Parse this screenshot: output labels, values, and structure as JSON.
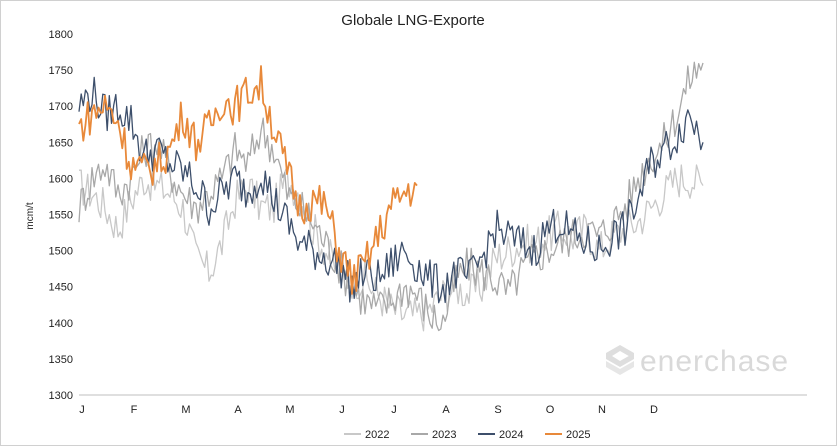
{
  "chart_data": {
    "type": "line",
    "title": "Globale LNG-Exporte",
    "xlabel": "",
    "ylabel": "mcm/t",
    "ylim": [
      1300,
      1800
    ],
    "yticks": [
      1300,
      1350,
      1400,
      1450,
      1500,
      1550,
      1600,
      1650,
      1700,
      1750,
      1800
    ],
    "xlim": [
      0,
      14.0
    ],
    "xticks": [
      "J",
      "F",
      "M",
      "A",
      "M",
      "J",
      "J",
      "A",
      "S",
      "O",
      "N",
      "D"
    ],
    "grid": false,
    "legend_position": "bottom",
    "series": [
      {
        "name": "2022",
        "color": "#c8c8c8",
        "x": [
          0.0,
          0.25,
          0.5,
          0.75,
          1.0,
          1.25,
          1.5,
          1.75,
          2.0,
          2.25,
          2.5,
          2.75,
          3.0,
          3.25,
          3.5,
          3.75,
          4.0,
          4.25,
          4.5,
          4.75,
          5.0,
          5.25,
          5.5,
          5.75,
          6.0,
          6.25,
          6.5,
          6.75,
          7.0,
          7.25,
          7.5,
          7.75,
          8.0,
          8.25,
          8.5,
          8.75,
          9.0,
          9.25,
          9.5,
          9.75,
          10.0,
          10.25,
          10.5,
          10.75,
          11.0,
          11.25,
          11.5,
          11.75,
          12.0
        ],
        "values": [
          1590,
          1580,
          1560,
          1530,
          1570,
          1600,
          1590,
          1580,
          1560,
          1490,
          1470,
          1510,
          1570,
          1590,
          1560,
          1560,
          1600,
          1580,
          1530,
          1500,
          1470,
          1460,
          1460,
          1440,
          1420,
          1410,
          1410,
          1420,
          1440,
          1450,
          1440,
          1450,
          1490,
          1500,
          1510,
          1510,
          1520,
          1530,
          1520,
          1530,
          1500,
          1520,
          1530,
          1540,
          1560,
          1580,
          1600,
          1600,
          1590
        ]
      },
      {
        "name": "2023",
        "color": "#a8a8a8",
        "x": [
          0.0,
          0.25,
          0.5,
          0.75,
          1.0,
          1.25,
          1.5,
          1.75,
          2.0,
          2.25,
          2.5,
          2.75,
          3.0,
          3.25,
          3.5,
          3.75,
          4.0,
          4.25,
          4.5,
          4.75,
          5.0,
          5.25,
          5.5,
          5.75,
          6.0,
          6.25,
          6.5,
          6.75,
          7.0,
          7.25,
          7.5,
          7.75,
          8.0,
          8.25,
          8.5,
          8.75,
          9.0,
          9.25,
          9.5,
          9.75,
          10.0,
          10.25,
          10.5,
          10.75,
          11.0,
          11.25,
          11.5,
          11.75,
          12.0
        ],
        "values": [
          1560,
          1600,
          1620,
          1580,
          1600,
          1640,
          1650,
          1610,
          1580,
          1560,
          1580,
          1600,
          1640,
          1620,
          1670,
          1640,
          1580,
          1560,
          1540,
          1510,
          1480,
          1450,
          1430,
          1420,
          1430,
          1450,
          1440,
          1410,
          1400,
          1460,
          1480,
          1470,
          1460,
          1440,
          1470,
          1490,
          1500,
          1510,
          1520,
          1530,
          1520,
          1540,
          1560,
          1600,
          1630,
          1650,
          1690,
          1740,
          1760
        ]
      },
      {
        "name": "2024",
        "color": "#3d4f6b",
        "x": [
          0.0,
          0.25,
          0.5,
          0.75,
          1.0,
          1.25,
          1.5,
          1.75,
          2.0,
          2.25,
          2.5,
          2.75,
          3.0,
          3.25,
          3.5,
          3.75,
          4.0,
          4.25,
          4.5,
          4.75,
          5.0,
          5.25,
          5.5,
          5.75,
          6.0,
          6.25,
          6.5,
          6.75,
          7.0,
          7.25,
          7.5,
          7.75,
          8.0,
          8.25,
          8.5,
          8.75,
          9.0,
          9.25,
          9.5,
          9.75,
          10.0,
          10.25,
          10.5,
          10.75,
          11.0,
          11.25,
          11.5,
          11.75,
          12.0
        ],
        "values": [
          1700,
          1720,
          1690,
          1700,
          1680,
          1630,
          1640,
          1620,
          1610,
          1590,
          1560,
          1580,
          1600,
          1580,
          1610,
          1570,
          1540,
          1510,
          1500,
          1490,
          1480,
          1450,
          1470,
          1460,
          1480,
          1500,
          1480,
          1460,
          1450,
          1470,
          1460,
          1490,
          1530,
          1520,
          1510,
          1500,
          1530,
          1540,
          1520,
          1510,
          1500,
          1520,
          1530,
          1570,
          1620,
          1640,
          1660,
          1690,
          1650
        ]
      },
      {
        "name": "2025",
        "color": "#e8893a",
        "x": [
          0.0,
          0.25,
          0.5,
          0.75,
          1.0,
          1.25,
          1.5,
          1.75,
          2.0,
          2.25,
          2.5,
          2.75,
          3.0,
          3.25,
          3.5,
          3.75,
          4.0,
          4.25,
          4.5,
          4.75,
          5.0,
          5.25,
          5.5,
          5.75,
          6.0,
          6.25,
          6.5
        ],
        "values": [
          1670,
          1690,
          1700,
          1680,
          1620,
          1610,
          1620,
          1640,
          1690,
          1650,
          1670,
          1710,
          1700,
          1720,
          1730,
          1670,
          1610,
          1560,
          1570,
          1560,
          1500,
          1460,
          1480,
          1520,
          1560,
          1580,
          1590
        ]
      }
    ],
    "watermark": "enerchase"
  }
}
